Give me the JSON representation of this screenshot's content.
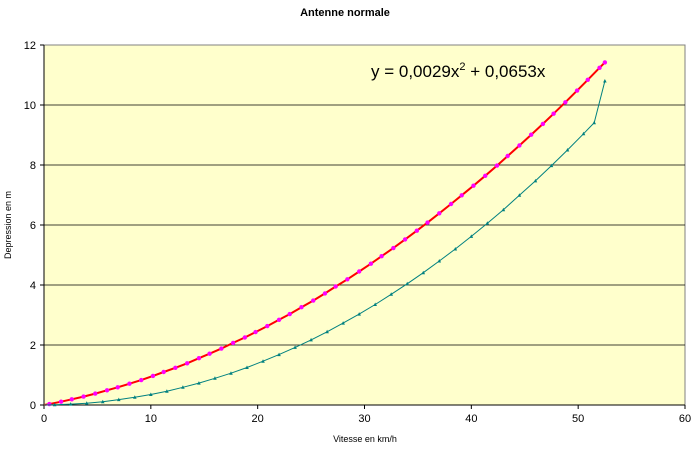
{
  "chart_data": {
    "type": "scatter",
    "title": "Antenne normale",
    "xlabel": "Vitesse en km/h",
    "ylabel": "Depression en m",
    "xlim": [
      0,
      60
    ],
    "ylim": [
      0,
      12
    ],
    "x_ticks": [
      0,
      10,
      20,
      30,
      40,
      50,
      60
    ],
    "y_ticks": [
      0,
      2,
      4,
      6,
      8,
      10,
      12
    ],
    "grid": "horizontal",
    "background": "#FFFFCC",
    "annotation": {
      "text": "y = 0,0029x",
      "sup": "2",
      "rest": " + 0,0653x"
    },
    "series": [
      {
        "color": "#FF00FF",
        "line_color": "#FF0000",
        "marker": "circle",
        "x": [
          0.5,
          1.6,
          2.6,
          3.7,
          4.8,
          5.9,
          6.9,
          8.0,
          9.1,
          10.2,
          11.2,
          12.3,
          13.4,
          14.5,
          15.5,
          16.6,
          17.7,
          18.8,
          19.8,
          20.9,
          22.0,
          23.0,
          24.1,
          25.2,
          26.3,
          27.3,
          28.4,
          29.5,
          30.6,
          31.6,
          32.7,
          33.8,
          34.9,
          35.9,
          37.0,
          38.1,
          39.1,
          40.2,
          41.3,
          42.4,
          43.4,
          44.5,
          45.6,
          46.7,
          47.7,
          48.8,
          49.9,
          50.9,
          52.0,
          52.5
        ],
        "y": [
          0.03,
          0.11,
          0.19,
          0.28,
          0.38,
          0.49,
          0.59,
          0.71,
          0.83,
          0.97,
          1.1,
          1.24,
          1.39,
          1.56,
          1.71,
          1.88,
          2.07,
          2.25,
          2.43,
          2.63,
          2.84,
          3.03,
          3.26,
          3.48,
          3.72,
          3.95,
          4.19,
          4.45,
          4.71,
          4.96,
          5.23,
          5.52,
          5.81,
          6.08,
          6.39,
          6.7,
          6.99,
          7.31,
          7.64,
          7.98,
          8.3,
          8.65,
          9.01,
          9.37,
          9.71,
          10.09,
          10.48,
          10.84,
          11.24,
          11.42
        ]
      },
      {
        "color": "#008080",
        "line_color": "#008080",
        "marker": "triangle",
        "x": [
          1.0,
          2.5,
          4.0,
          5.5,
          7.0,
          8.5,
          10.0,
          11.5,
          13.0,
          14.5,
          16.0,
          17.5,
          19.0,
          20.5,
          22.0,
          23.5,
          25.0,
          26.5,
          28.0,
          29.5,
          31.0,
          32.5,
          34.0,
          35.5,
          37.0,
          38.5,
          40.0,
          41.5,
          43.0,
          44.5,
          46.0,
          47.5,
          49.0,
          50.5,
          51.5,
          52.5
        ],
        "y": [
          0.01,
          0.03,
          0.06,
          0.11,
          0.18,
          0.26,
          0.35,
          0.46,
          0.59,
          0.73,
          0.89,
          1.06,
          1.25,
          1.46,
          1.68,
          1.92,
          2.17,
          2.44,
          2.73,
          3.03,
          3.35,
          3.69,
          4.04,
          4.41,
          4.8,
          5.2,
          5.62,
          6.06,
          6.51,
          6.99,
          7.47,
          7.98,
          8.5,
          9.04,
          9.41,
          10.8
        ]
      }
    ]
  }
}
